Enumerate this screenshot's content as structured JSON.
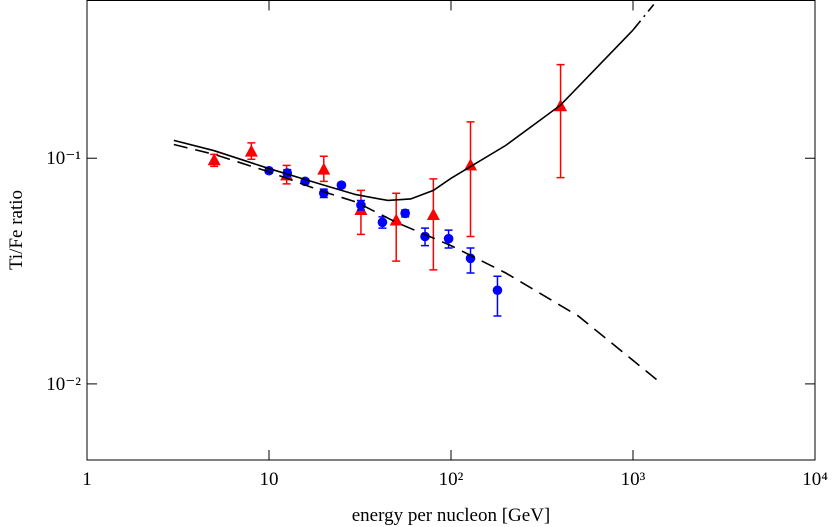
{
  "chart_data": {
    "type": "scatter",
    "xlabel": "energy per nucleon [GeV]",
    "ylabel": "Ti/Fe ratio",
    "xlog": true,
    "ylog": true,
    "xlim": [
      1,
      10000
    ],
    "ylim": [
      0.0046,
      0.5
    ],
    "xticks": [
      1,
      10,
      {
        "value": 100,
        "label": "10²"
      },
      {
        "value": 1000,
        "label": "10³"
      },
      {
        "value": 10000,
        "label": "10⁴"
      }
    ],
    "yticks": [
      {
        "value": 0.01,
        "label": "10⁻²"
      },
      {
        "value": 0.1,
        "label": "10⁻¹"
      }
    ],
    "series": [
      {
        "style": "markers",
        "marker": "triangle",
        "color": "#ff0000",
        "x": [
          5,
          8,
          12.5,
          20,
          32,
          50,
          80,
          128,
          400
        ],
        "values": [
          0.098,
          0.107,
          0.084,
          0.089,
          0.059,
          0.053,
          0.056,
          0.093,
          0.17
        ],
        "ylow": [
          0.092,
          0.099,
          0.077,
          0.079,
          0.046,
          0.035,
          0.032,
          0.045,
          0.082
        ],
        "yhigh": [
          0.104,
          0.117,
          0.093,
          0.102,
          0.072,
          0.07,
          0.081,
          0.145,
          0.26
        ]
      },
      {
        "style": "markers",
        "marker": "circle",
        "color": "#0000ff",
        "x": [
          10,
          12.6,
          15.8,
          20,
          25,
          32,
          42,
          56,
          72,
          97,
          128,
          180
        ],
        "values": [
          0.088,
          0.086,
          0.079,
          0.07,
          0.076,
          0.062,
          0.052,
          0.057,
          0.045,
          0.044,
          0.036,
          0.026
        ],
        "ylow": [
          0.086,
          0.083,
          0.077,
          0.067,
          0.074,
          0.059,
          0.049,
          0.055,
          0.041,
          0.04,
          0.031,
          0.02
        ],
        "yhigh": [
          0.09,
          0.089,
          0.081,
          0.073,
          0.078,
          0.065,
          0.055,
          0.059,
          0.049,
          0.048,
          0.04,
          0.03
        ]
      },
      {
        "style": "solid",
        "color": "#000000",
        "x": [
          3,
          5,
          10,
          20,
          30,
          45,
          60,
          80,
          100,
          200,
          400,
          1000
        ],
        "values": [
          0.12,
          0.108,
          0.09,
          0.076,
          0.069,
          0.065,
          0.066,
          0.072,
          0.0815,
          0.114,
          0.172,
          0.37
        ]
      },
      {
        "style": "dashdot",
        "color": "#000000",
        "x": [
          1000,
          1300
        ],
        "values": [
          0.37,
          0.48
        ]
      },
      {
        "style": "dashed",
        "color": "#000000",
        "x": [
          3,
          5,
          10,
          20,
          30,
          50,
          100,
          200,
          500,
          1400
        ],
        "values": [
          0.115,
          0.104,
          0.087,
          0.071,
          0.064,
          0.052,
          0.041,
          0.031,
          0.02,
          0.0102
        ]
      }
    ]
  }
}
